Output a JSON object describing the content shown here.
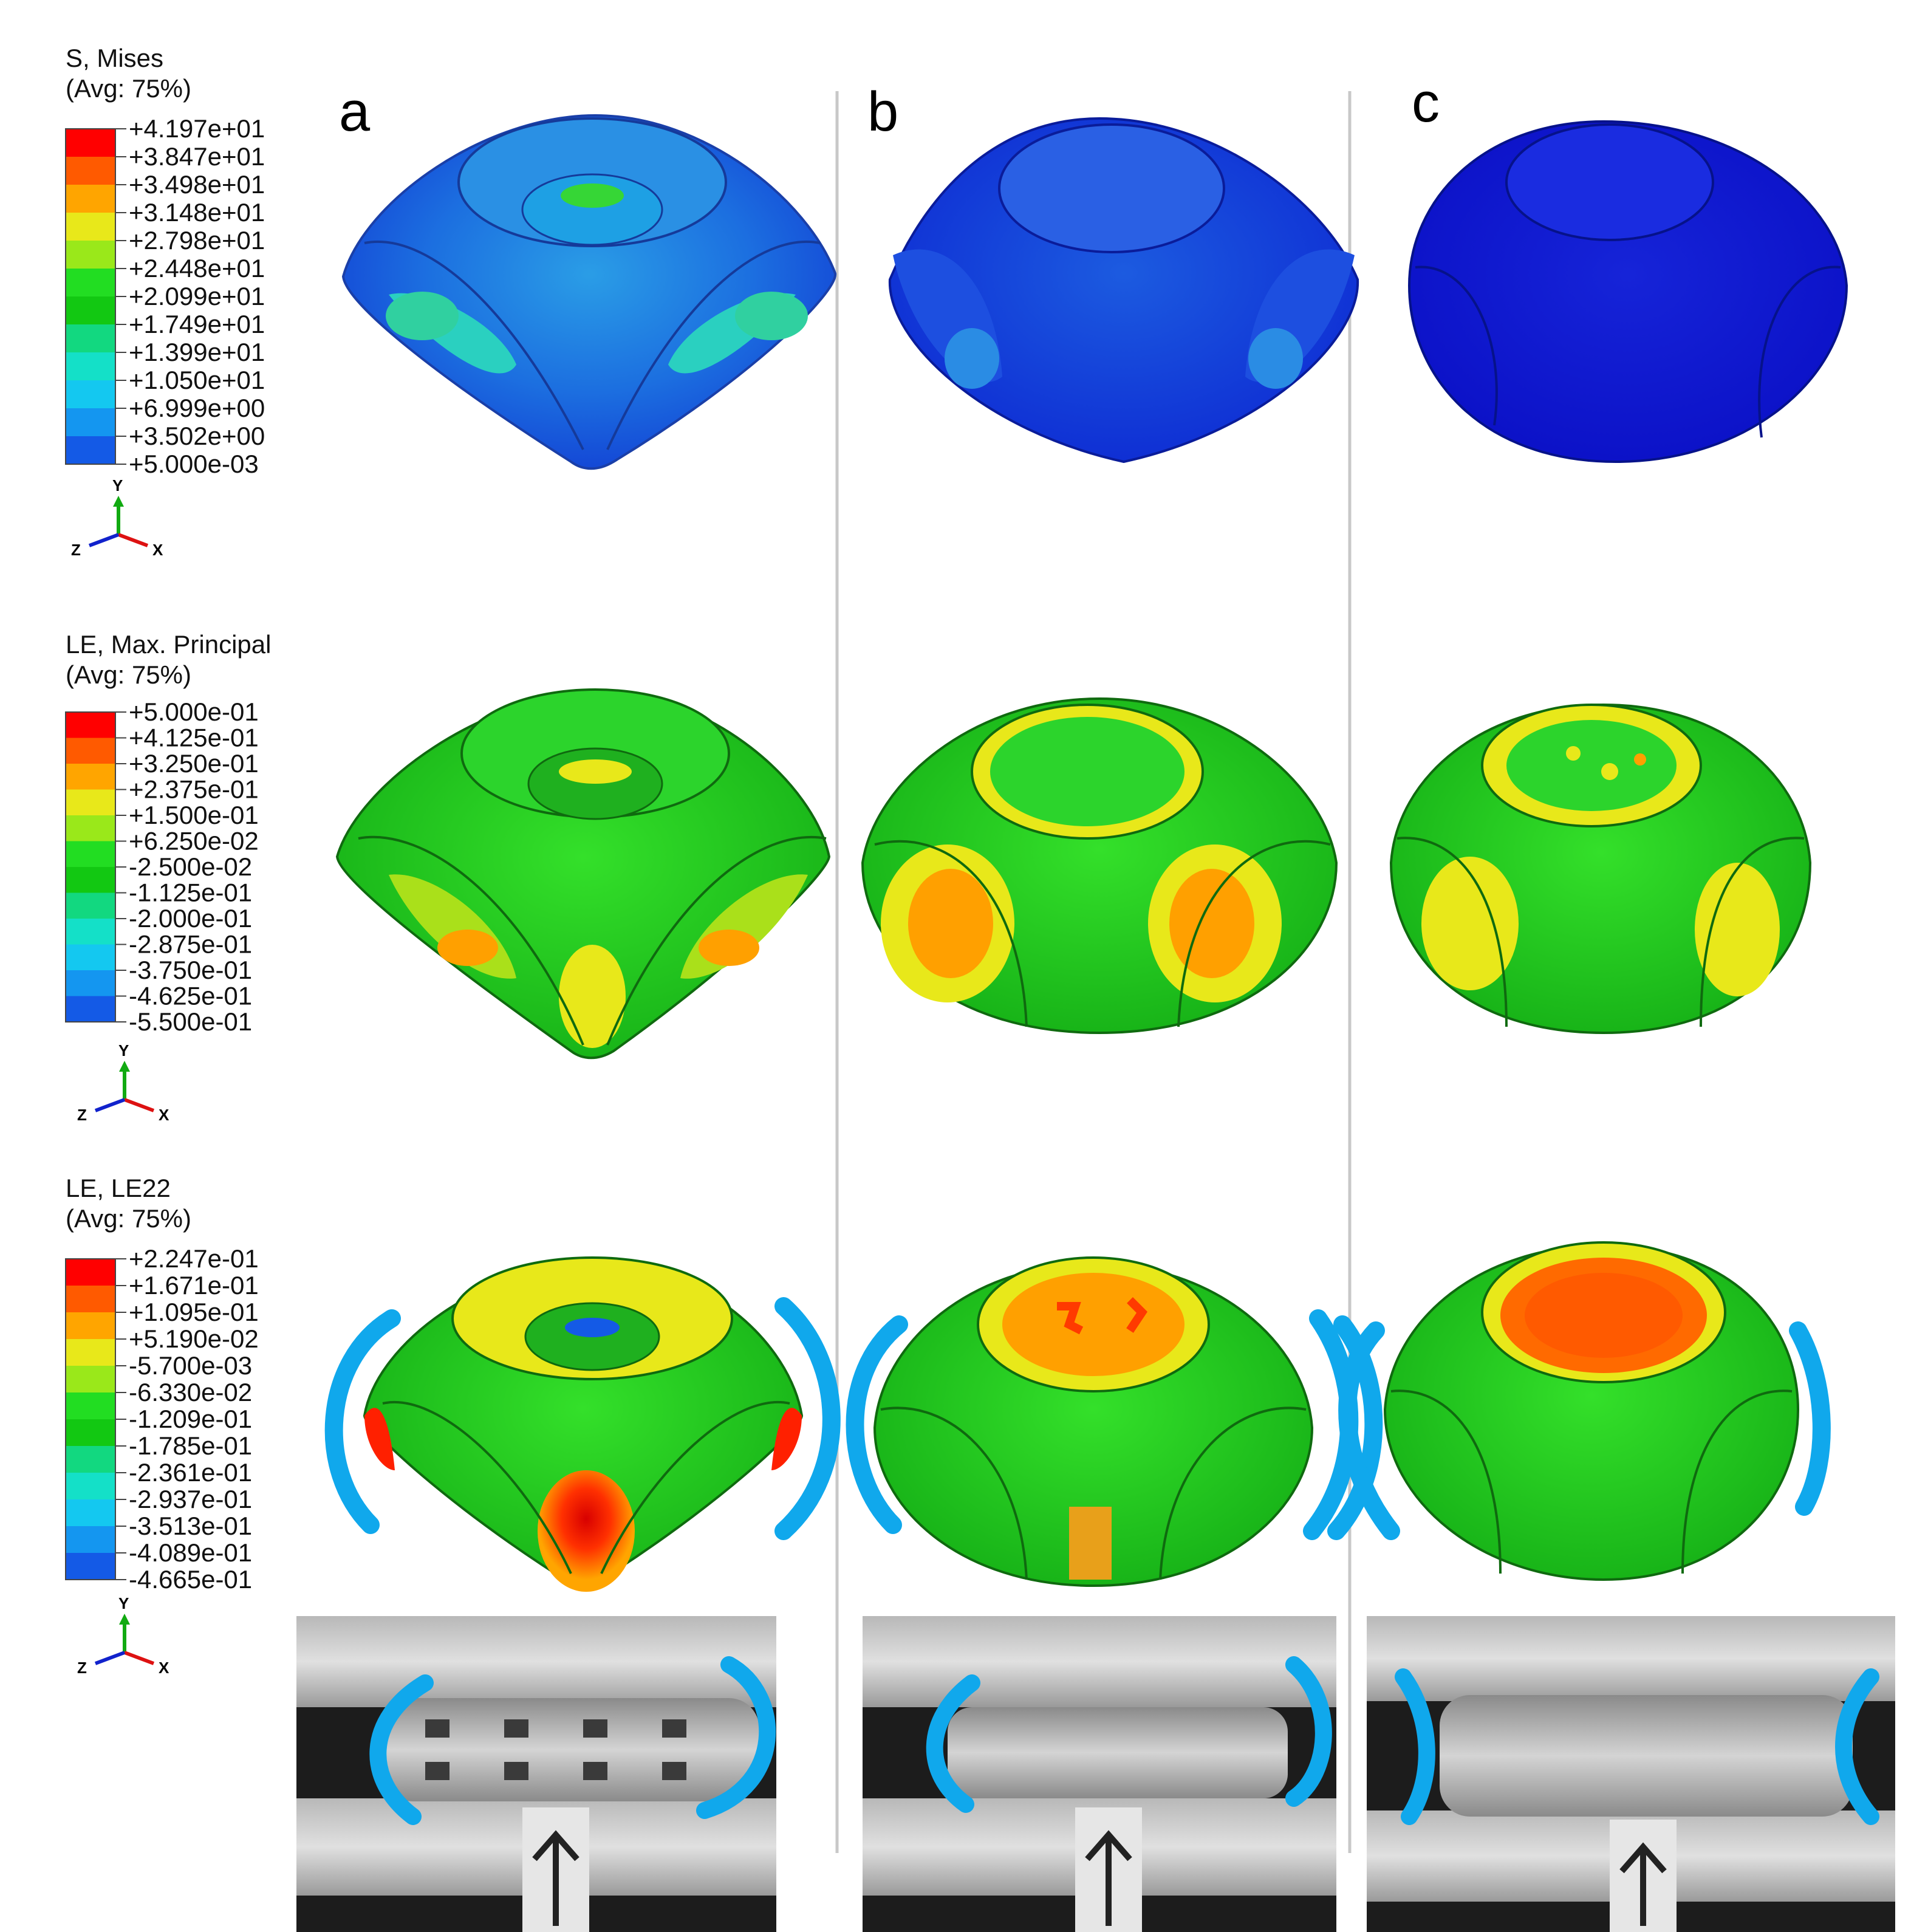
{
  "columns": {
    "a": "a",
    "b": "b",
    "c": "c"
  },
  "legends": [
    {
      "title": "S, Mises",
      "subtitle": "(Avg: 75%)",
      "values": [
        "+4.197e+01",
        "+3.847e+01",
        "+3.498e+01",
        "+3.148e+01",
        "+2.798e+01",
        "+2.448e+01",
        "+2.099e+01",
        "+1.749e+01",
        "+1.399e+01",
        "+1.050e+01",
        "+6.999e+00",
        "+3.502e+00",
        "+5.000e-03"
      ]
    },
    {
      "title": "LE, Max. Principal",
      "subtitle": "(Avg: 75%)",
      "values": [
        "+5.000e-01",
        "+4.125e-01",
        "+3.250e-01",
        "+2.375e-01",
        "+1.500e-01",
        "+6.250e-02",
        "-2.500e-02",
        "-1.125e-01",
        "-2.000e-01",
        "-2.875e-01",
        "-3.750e-01",
        "-4.625e-01",
        "-5.500e-01"
      ]
    },
    {
      "title": "LE, LE22",
      "subtitle": "(Avg: 75%)",
      "values": [
        "+2.247e-01",
        "+1.671e-01",
        "+1.095e-01",
        "+5.190e-02",
        "-5.700e-03",
        "-6.330e-02",
        "-1.209e-01",
        "-1.785e-01",
        "-2.361e-01",
        "-2.937e-01",
        "-3.513e-01",
        "-4.089e-01",
        "-4.665e-01"
      ]
    }
  ],
  "colormap": [
    "#ff0000",
    "#ff5a00",
    "#ffa500",
    "#e8e81a",
    "#9ae81a",
    "#22dd22",
    "#12c812",
    "#12d880",
    "#14e0c8",
    "#14c8f0",
    "#1496f0",
    "#145ae6",
    "#0a00e6"
  ],
  "triad": {
    "y": "Y",
    "x": "X",
    "z": "Z"
  }
}
